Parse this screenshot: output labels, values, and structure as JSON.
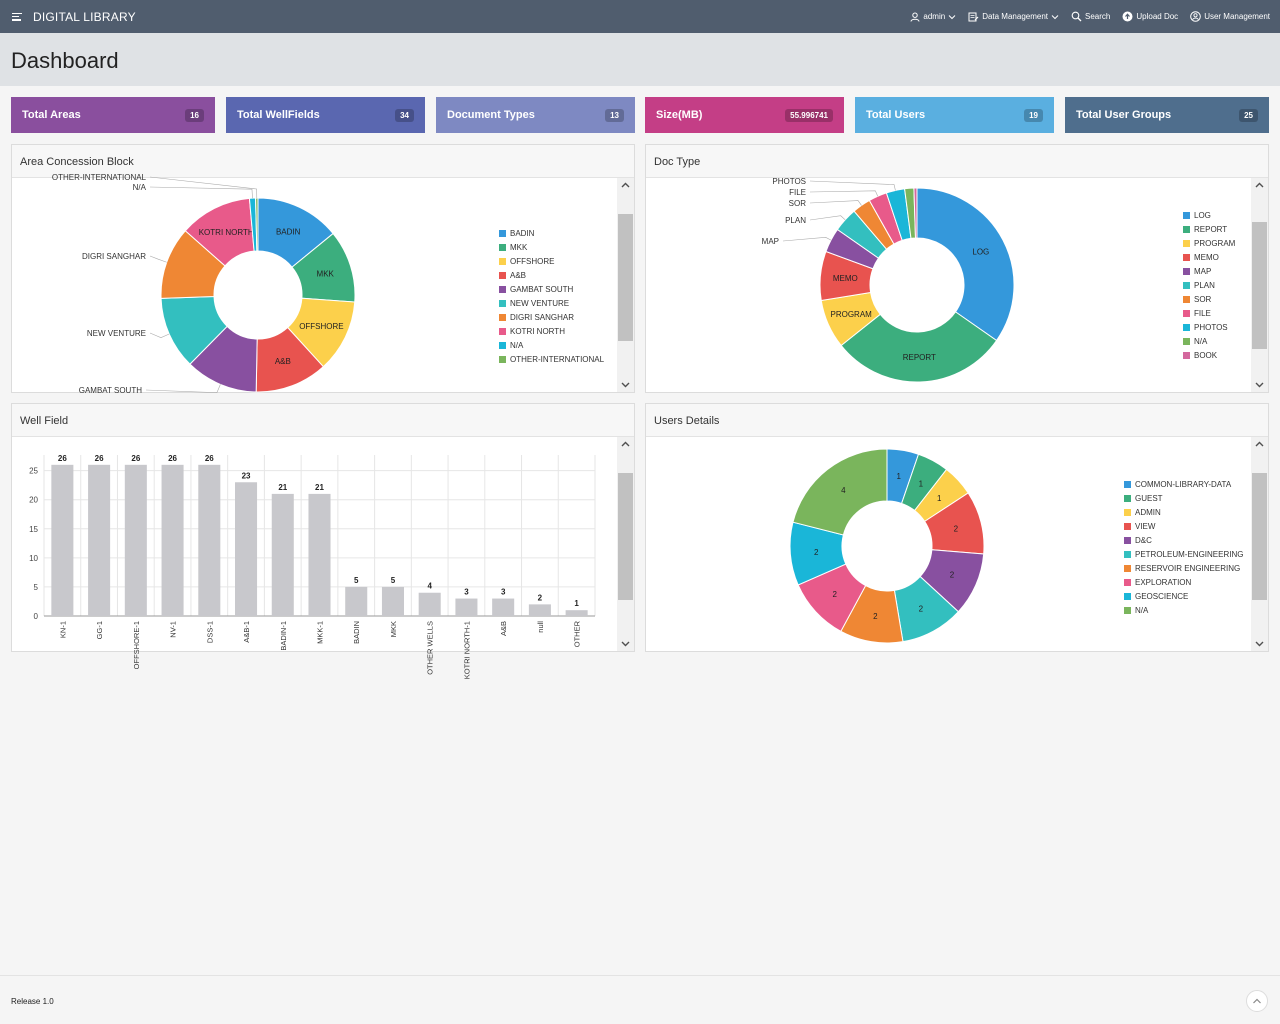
{
  "app": {
    "title": "DIGITAL LIBRARY"
  },
  "nav": {
    "user": "admin",
    "data_management": "Data Management",
    "search": "Search",
    "upload": "Upload Doc",
    "user_management": "User Management"
  },
  "page": {
    "title": "Dashboard"
  },
  "stats": [
    {
      "label": "Total Areas",
      "value": "16",
      "color": "#8a4f9e"
    },
    {
      "label": "Total WellFields",
      "value": "34",
      "color": "#5a67b0"
    },
    {
      "label": "Document Types",
      "value": "13",
      "color": "#7e89c2"
    },
    {
      "label": "Size(MB)",
      "value": "55.996741",
      "color": "#c43e86"
    },
    {
      "label": "Total Users",
      "value": "19",
      "color": "#5aafe0"
    },
    {
      "label": "Total User Groups",
      "value": "25",
      "color": "#4f6e8d"
    }
  ],
  "panels": {
    "area": "Area Concession Block",
    "doctype": "Doc Type",
    "wellfield": "Well Field",
    "users": "Users Details"
  },
  "footer": {
    "release": "Release 1.0"
  },
  "chart_data": [
    {
      "type": "pie",
      "title": "",
      "categories": [
        "BADIN",
        "MKK",
        "OFFSHORE",
        "A&B",
        "GAMBAT SOUTH",
        "NEW VENTURE",
        "DIGRI SANGHAR",
        "KOTRI NORTH",
        "N/A",
        "OTHER-INTERNATIONAL"
      ],
      "values": [
        14,
        12,
        12,
        12,
        12,
        12,
        12,
        12,
        1,
        0.4
      ],
      "colors": [
        "#3498db",
        "#3cae7e",
        "#fcd04b",
        "#e8534f",
        "#8850a0",
        "#33bfbf",
        "#ef8734",
        "#e85a8a",
        "#1ab6d8",
        "#7ab55c"
      ],
      "slice_labels": [
        "BADIN",
        "MKK",
        "OFFSHORE",
        "A&B",
        "GAMBAT SOUTH",
        "NEW VENTURE",
        "DIGRI SANGHAR",
        "KOTRI NORTH",
        "N/A",
        "OTHER-INTERNATIONAL"
      ],
      "legend": [
        "BADIN",
        "MKK",
        "OFFSHORE",
        "A&B",
        "GAMBAT SOUTH",
        "NEW VENTURE",
        "DIGRI SANGHAR",
        "KOTRI NORTH",
        "N/A",
        "OTHER-INTERNATIONAL"
      ],
      "legend_position": "right"
    },
    {
      "type": "pie",
      "title": "",
      "categories": [
        "LOG",
        "REPORT",
        "PROGRAM",
        "MEMO",
        "MAP",
        "PLAN",
        "SOR",
        "FILE",
        "PHOTOS",
        "N/A",
        "BOOK"
      ],
      "values": [
        34,
        29,
        8,
        8,
        4,
        4,
        3,
        3,
        3,
        1.5,
        0.5
      ],
      "colors": [
        "#3498db",
        "#3cae7e",
        "#fcd04b",
        "#e8534f",
        "#8850a0",
        "#33bfbf",
        "#ef8734",
        "#e85a8a",
        "#1ab6d8",
        "#7ab55c",
        "#d4689e"
      ],
      "slice_labels": [
        "LOG",
        "REPORT",
        "PROGRAM",
        "MEMO",
        "MAP",
        "PLAN",
        "SOR",
        "FILE",
        "PHOTOS",
        "",
        ""
      ],
      "legend": [
        "LOG",
        "REPORT",
        "PROGRAM",
        "MEMO",
        "MAP",
        "PLAN",
        "SOR",
        "FILE",
        "PHOTOS",
        "N/A",
        "BOOK"
      ],
      "legend_position": "right"
    },
    {
      "type": "bar",
      "title": "",
      "categories": [
        "KN-1",
        "GG-1",
        "OFFSHORE-1",
        "NV-1",
        "DSS-1",
        "A&B-1",
        "BADIN-1",
        "MKK-1",
        "BADIN",
        "MKK",
        "OTHER WELLS",
        "KOTRI NORTH-1",
        "A&B",
        "null",
        "OTHER"
      ],
      "values": [
        26,
        26,
        26,
        26,
        26,
        23,
        21,
        21,
        5,
        5,
        4,
        3,
        3,
        2,
        1
      ],
      "ylim": [
        0,
        27
      ],
      "yticks": [
        "0",
        "5",
        "10",
        "15",
        "20",
        "25"
      ],
      "color": "#c8c8cc",
      "grid": true
    },
    {
      "type": "pie",
      "title": "",
      "categories": [
        "COMMON-LIBRARY-DATA",
        "GUEST",
        "ADMIN",
        "VIEW",
        "D&C",
        "PETROLEUM-ENGINEERING",
        "RESERVOIR ENGINEERING",
        "EXPLORATION",
        "GEOSCIENCE",
        "N/A"
      ],
      "values": [
        1,
        1,
        1,
        2,
        2,
        2,
        2,
        2,
        2,
        4
      ],
      "colors": [
        "#3498db",
        "#3cae7e",
        "#fcd04b",
        "#e8534f",
        "#8850a0",
        "#33bfbf",
        "#ef8734",
        "#e85a8a",
        "#1ab6d8",
        "#7ab55c"
      ],
      "legend": [
        "COMMON-LIBRARY-DATA",
        "GUEST",
        "ADMIN",
        "VIEW",
        "D&C",
        "PETROLEUM-ENGINEERING",
        "RESERVOIR ENGINEERING",
        "EXPLORATION",
        "GEOSCIENCE",
        "N/A"
      ],
      "legend_position": "right"
    }
  ]
}
